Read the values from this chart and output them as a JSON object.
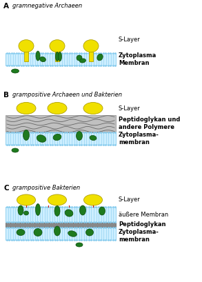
{
  "bg_color": "#ffffff",
  "membrane_color": "#cceeff",
  "membrane_line_color": "#88ccee",
  "yellow_color": "#f0e000",
  "yellow_outline": "#b0a000",
  "green_dark": "#1e7a1e",
  "green_mid": "#2a9a2a",
  "peptido_fill": "#c0c0c0",
  "peptido_edge": "#888888",
  "label_color": "#000000",
  "section_titles": [
    "gramnegative Archaeen",
    "grampositive Archaeen und Bakterien",
    "grampositive Bakterien"
  ],
  "font_size": 6.0
}
